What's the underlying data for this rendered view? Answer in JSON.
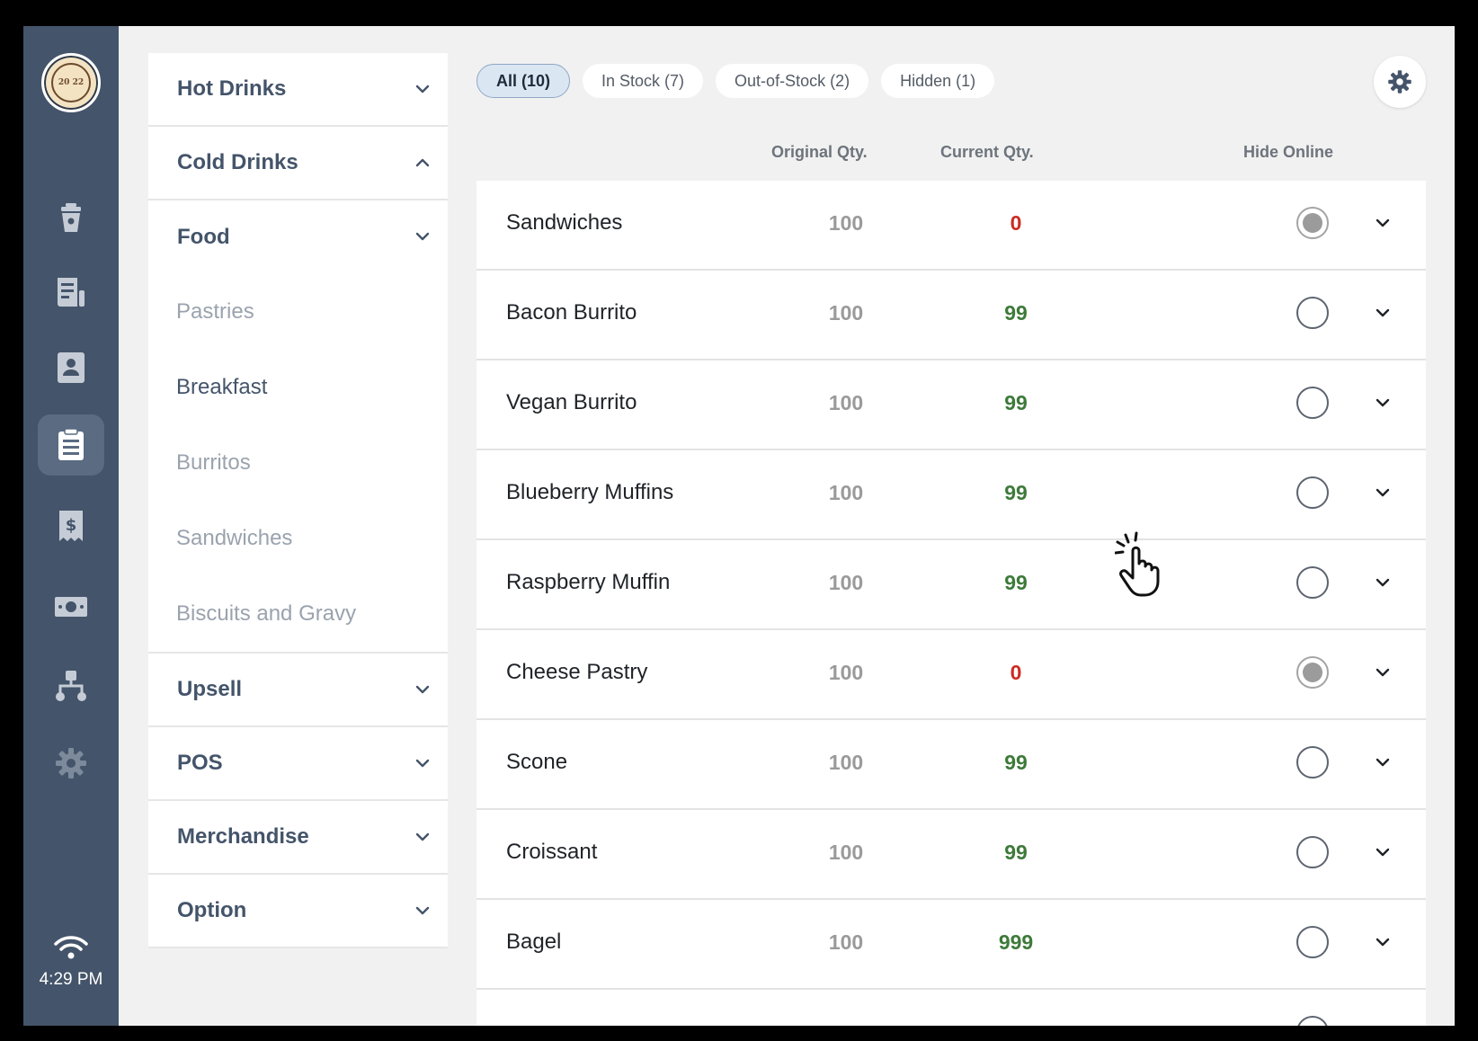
{
  "clock": "4:29 PM",
  "logo_text": "20 22",
  "nav_icons": [
    "cup-icon",
    "report-icon",
    "contacts-icon",
    "clipboard-icon",
    "receipt-icon",
    "money-icon",
    "hierarchy-icon",
    "settings-icon"
  ],
  "categories": {
    "hot_drinks": "Hot Drinks",
    "cold_drinks": "Cold Drinks",
    "food": "Food",
    "sub": [
      "Pastries",
      "Breakfast",
      "Burritos",
      "Sandwiches",
      "Biscuits and Gravy"
    ],
    "upsell": "Upsell",
    "pos": "POS",
    "merchandise": "Merchandise",
    "option": "Option"
  },
  "filters": {
    "all": "All (10)",
    "in_stock": "In Stock (7)",
    "out_of_stock": "Out-of-Stock (2)",
    "hidden": "Hidden (1)"
  },
  "table": {
    "headers": {
      "original": "Original Qty.",
      "current": "Current Qty.",
      "hide_online": "Hide Online"
    },
    "rows": [
      {
        "name": "Sandwiches",
        "original": "100",
        "current": "0",
        "hidden": true
      },
      {
        "name": "Bacon Burrito",
        "original": "100",
        "current": "99",
        "hidden": false
      },
      {
        "name": "Vegan Burrito",
        "original": "100",
        "current": "99",
        "hidden": false
      },
      {
        "name": "Blueberry Muffins",
        "original": "100",
        "current": "99",
        "hidden": false
      },
      {
        "name": "Raspberry Muffin",
        "original": "100",
        "current": "99",
        "hidden": false
      },
      {
        "name": "Cheese Pastry",
        "original": "100",
        "current": "0",
        "hidden": true
      },
      {
        "name": "Scone",
        "original": "100",
        "current": "99",
        "hidden": false
      },
      {
        "name": "Croissant",
        "original": "100",
        "current": "99",
        "hidden": false
      },
      {
        "name": "Bagel",
        "original": "100",
        "current": "999",
        "hidden": false
      },
      {
        "name": "",
        "original": "",
        "current": "",
        "hidden": false
      }
    ]
  },
  "colors": {
    "rail": "#44546a",
    "zero_qty": "#cc2b22",
    "positive_qty": "#3e7a3a",
    "active_pill": "#dbe6f3"
  }
}
